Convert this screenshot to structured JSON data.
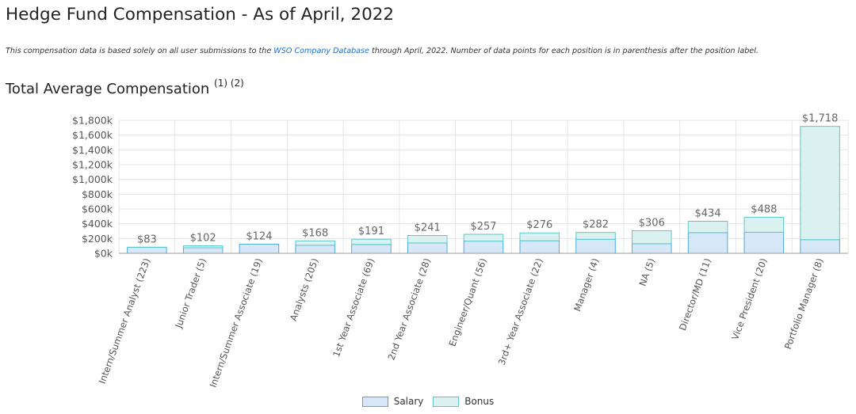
{
  "page": {
    "title": "Hedge Fund Compensation - As of April, 2022",
    "intro_prefix": "This compensation data is based solely on all user submissions to the",
    "intro_link": "WSO Company Database",
    "intro_suffix": "through April, 2022. Number of data points for each position is in parenthesis after the position label.",
    "section_title": "Total Average Compensation",
    "section_notes": "(1) (2)"
  },
  "colors": {
    "salary_fill": "#d6e8f8",
    "salary_stroke": "#4ea9e0",
    "bonus_fill": "#dbf1ef",
    "bonus_stroke": "#5cc8c8",
    "grid": "#e6e6e6",
    "axis_text": "#555555",
    "label_text": "#666666"
  },
  "chart_data": {
    "type": "bar",
    "stacked": true,
    "categories": [
      "Intern/Summer Analyst (223)",
      "Junior Trader (5)",
      "Intern/Summer Associate (19)",
      "Analysts (205)",
      "1st Year Associate (69)",
      "2nd Year Associate (28)",
      "Engineer/Quant (56)",
      "3rd+ Year Associate (22)",
      "Manager (4)",
      "NA (5)",
      "Director/MD (11)",
      "Vice President (20)",
      "Portfolio Manager (8)"
    ],
    "series": [
      {
        "name": "Salary",
        "values": [
          80,
          75,
          124,
          110,
          120,
          140,
          165,
          170,
          190,
          130,
          280,
          285,
          185
        ]
      },
      {
        "name": "Bonus",
        "values": [
          3,
          27,
          0,
          58,
          71,
          101,
          92,
          106,
          92,
          176,
          154,
          203,
          1533
        ]
      }
    ],
    "totals": [
      83,
      102,
      124,
      168,
      191,
      241,
      257,
      276,
      282,
      306,
      434,
      488,
      1718
    ],
    "total_labels": [
      "$83",
      "$102",
      "$124",
      "$168",
      "$191",
      "$241",
      "$257",
      "$276",
      "$282",
      "$306",
      "$434",
      "$488",
      "$1,718"
    ],
    "y_ticks": [
      0,
      200,
      400,
      600,
      800,
      1000,
      1200,
      1400,
      1600,
      1800
    ],
    "y_tick_labels": [
      "$0k",
      "$200k",
      "$400k",
      "$600k",
      "$800k",
      "$1,000k",
      "$1,200k",
      "$1,400k",
      "$1,600k",
      "$1,800k"
    ],
    "ylim": [
      0,
      1800
    ],
    "units": "thousands USD",
    "grid": true,
    "legend_position": "bottom"
  }
}
